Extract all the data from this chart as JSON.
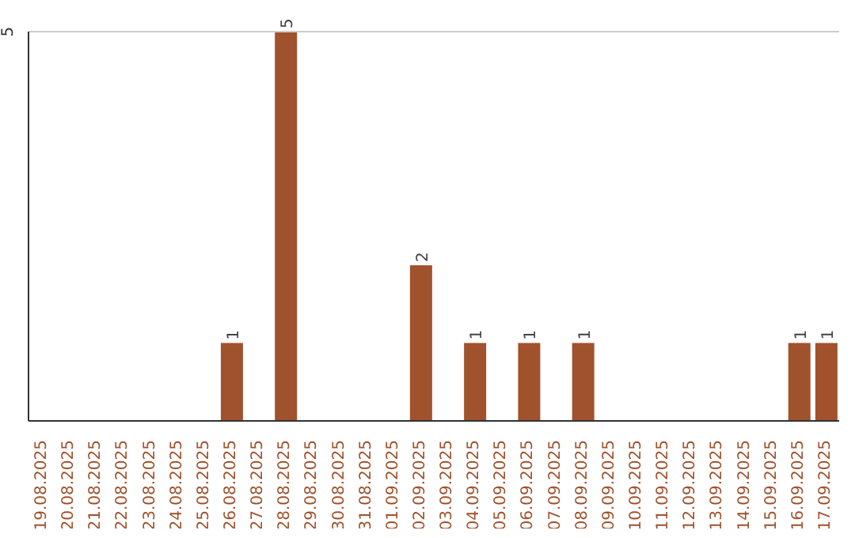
{
  "chart_data": {
    "type": "bar",
    "categories": [
      "19.08.2025",
      "20.08.2025",
      "21.08.2025",
      "22.08.2025",
      "23.08.2025",
      "24.08.2025",
      "25.08.2025",
      "26.08.2025",
      "27.08.2025",
      "28.08.2025",
      "29.08.2025",
      "30.08.2025",
      "31.08.2025",
      "01.09.2025",
      "02.09.2025",
      "03.09.2025",
      "04.09.2025",
      "05.09.2025",
      "06.09.2025",
      "07.09.2025",
      "08.09.2025",
      "09.09.2025",
      "10.09.2025",
      "11.09.2025",
      "12.09.2025",
      "13.09.2025",
      "14.09.2025",
      "15.09.2025",
      "16.09.2025",
      "17.09.2025"
    ],
    "values": [
      0,
      0,
      0,
      0,
      0,
      0,
      0,
      1,
      0,
      5,
      0,
      0,
      0,
      0,
      2,
      0,
      1,
      0,
      1,
      0,
      1,
      0,
      0,
      0,
      0,
      0,
      0,
      0,
      1,
      1
    ],
    "value_labels": [
      null,
      null,
      null,
      null,
      null,
      null,
      null,
      "1",
      null,
      "5",
      null,
      null,
      null,
      null,
      "2",
      null,
      "1",
      null,
      "1",
      null,
      "1",
      null,
      null,
      null,
      null,
      null,
      null,
      null,
      "1",
      "1"
    ],
    "color": "#a0522d",
    "ylim": [
      0,
      5
    ],
    "yticks": [
      5
    ],
    "ref_lines": [
      {
        "axis": "y",
        "value": 5,
        "color": "#cccccc"
      }
    ]
  }
}
